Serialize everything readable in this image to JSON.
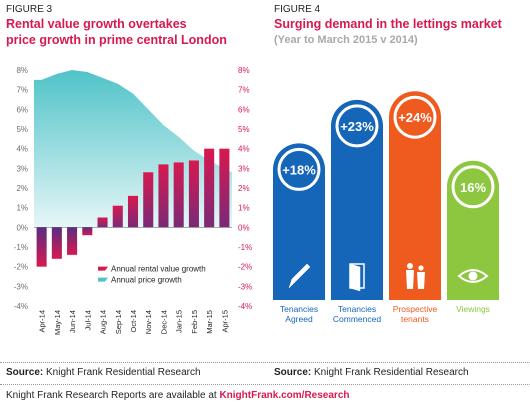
{
  "figure3": {
    "label": "FIGURE 3",
    "title_line1": "Rental value growth overtakes",
    "title_line2": "price growth in prime central London",
    "source_label": "Source:",
    "source_text": "Knight Frank Residential Research"
  },
  "figure4": {
    "label": "FIGURE 4",
    "title": "Surging demand in the lettings market",
    "subtitle": "(Year to March 2015 v 2014)",
    "source_label": "Source:",
    "source_text": "Knight Frank Residential Research"
  },
  "footer": {
    "text": "Knight Frank Research Reports are available at ",
    "link": "KnightFrank.com/Research"
  },
  "colors": {
    "pink": "#d7194f",
    "teal": "#4fc3c8",
    "purple": "#5a2d82",
    "blue": "#1565b8",
    "orange": "#ef5a1e",
    "green": "#8dc63f"
  },
  "chart_data": [
    {
      "type": "bar",
      "categories": [
        "Apr-14",
        "May-14",
        "Jun-14",
        "Jul-14",
        "Aug-14",
        "Sep-14",
        "Oct-14",
        "Nov-14",
        "Dec-14",
        "Jan-15",
        "Feb-15",
        "Mar-15",
        "Apr-15"
      ],
      "series": [
        {
          "name": "Annual rental value growth",
          "type": "bar",
          "color": "#d7194f",
          "values": [
            -2.0,
            -1.6,
            -1.4,
            -0.4,
            0.5,
            1.1,
            1.6,
            2.8,
            3.2,
            3.3,
            3.4,
            4.0,
            4.0
          ]
        },
        {
          "name": "Annual price growth",
          "type": "area",
          "color": "#4fc3c8",
          "values": [
            7.5,
            7.8,
            8.0,
            7.9,
            7.6,
            7.3,
            6.8,
            6.0,
            5.2,
            4.6,
            3.9,
            3.4,
            3.0
          ]
        }
      ],
      "yticks": [
        "8%",
        "7%",
        "6%",
        "5%",
        "4%",
        "3%",
        "2%",
        "1%",
        "0%",
        "-1%",
        "-2%",
        "-3%",
        "-4%"
      ],
      "ylim": [
        -4,
        8
      ],
      "legend_position": "bottom-right"
    },
    {
      "type": "bar",
      "categories": [
        "Tenancies Agreed",
        "Tenancies Commenced",
        "Prospective tenants",
        "Viewings"
      ],
      "values": [
        18,
        23,
        24,
        16
      ],
      "value_labels": [
        "+18%",
        "+23%",
        "+24%",
        "16%"
      ],
      "icons": [
        "pen-icon",
        "door-icon",
        "people-icon",
        "eye-icon"
      ],
      "colors": [
        "#1565b8",
        "#1565b8",
        "#ef5a1e",
        "#8dc63f"
      ]
    }
  ]
}
